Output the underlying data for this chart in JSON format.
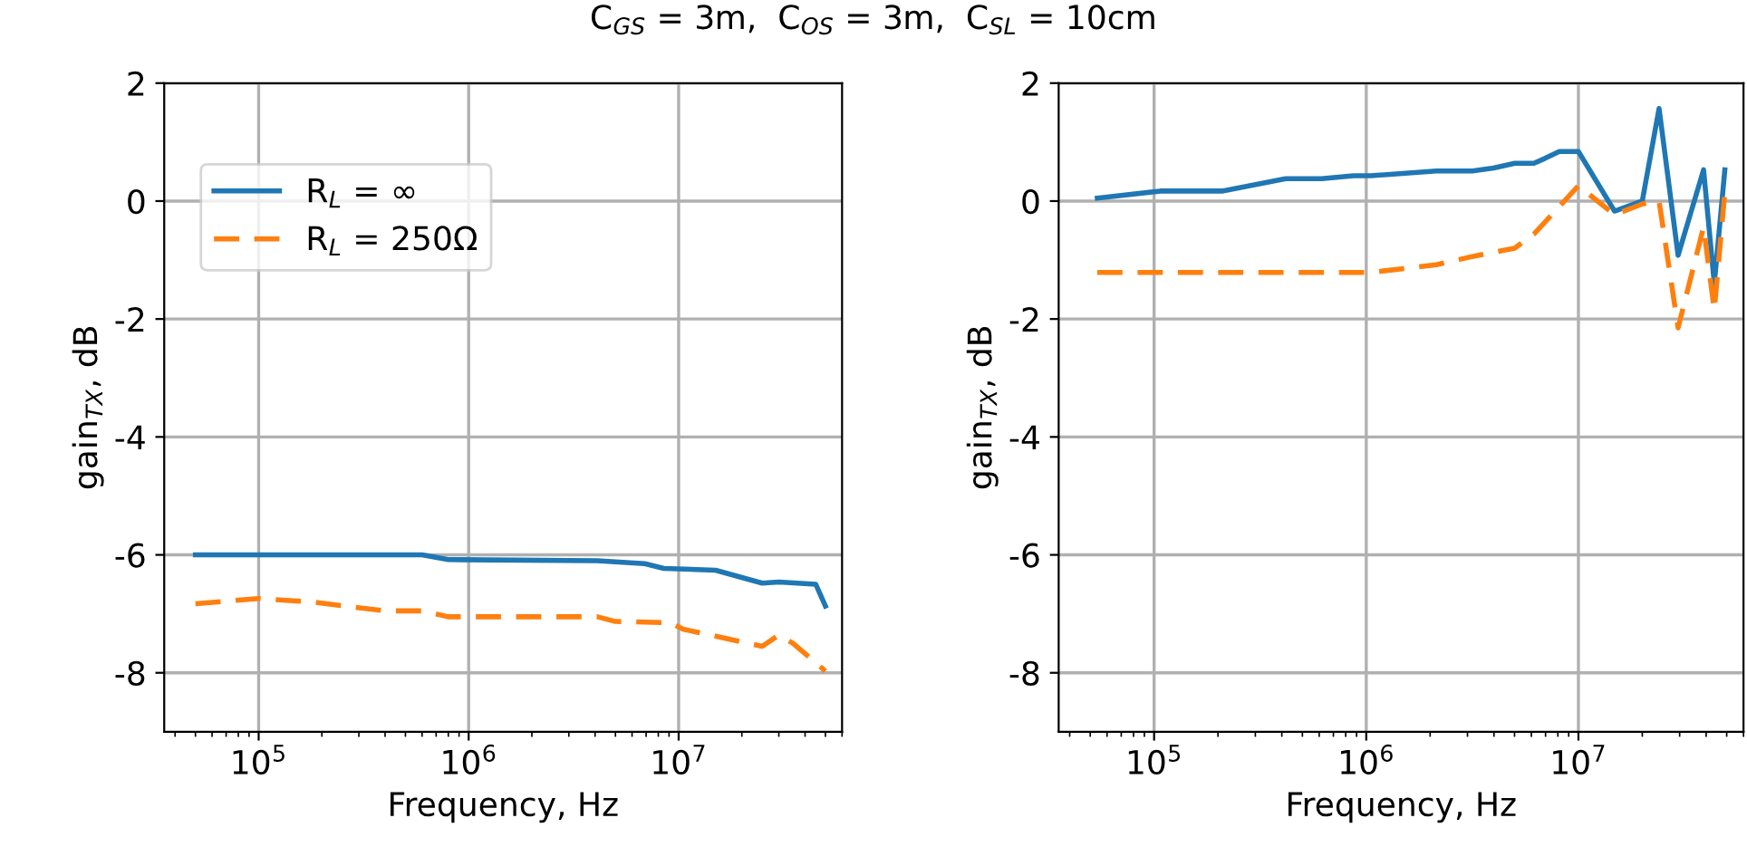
{
  "chart_data": [
    {
      "type": "line",
      "title": "C$_{GS}$ = 3m,  C$_{OS}$ = 3m,  C$_{SL}$ = 10cm",
      "xlabel": "Frequency, Hz",
      "ylabel": "gain$_{TX}$, dB",
      "log": "x",
      "grid": true,
      "legend": "top left",
      "xlim": [
        35500,
        60000000
      ],
      "ylim": [
        -9,
        2
      ],
      "xticks": [
        {
          "value": 100000,
          "label": "10$^{5}$"
        },
        {
          "value": 1000000,
          "label": "10$^{6}$"
        },
        {
          "value": 10000000,
          "label": "10$^{7}$"
        }
      ],
      "yticks": [
        -8,
        -6,
        -4,
        -2,
        0,
        2
      ],
      "series": [
        {
          "name": "R$_{L}$ = ∞",
          "color": "#1f77b4",
          "line_style": "solid",
          "x": [
            50000,
            600000,
            800000,
            4100000,
            6900000,
            8500000,
            15000000,
            25000000,
            30000000,
            45000000,
            50000000
          ],
          "values": [
            -6.0,
            -6.0,
            -6.08,
            -6.1,
            -6.15,
            -6.23,
            -6.26,
            -6.48,
            -6.46,
            -6.5,
            -6.87
          ]
        },
        {
          "name": "R$_{L}$ = 250Ω",
          "color": "#ff7f0e",
          "line_style": "dashed",
          "x": [
            50000,
            100000,
            180000,
            400000,
            600000,
            800000,
            4100000,
            5000000,
            9100000,
            10500000,
            25000000,
            30000000,
            35000000,
            50000000
          ],
          "values": [
            -6.83,
            -6.74,
            -6.8,
            -6.95,
            -6.95,
            -7.05,
            -7.05,
            -7.13,
            -7.15,
            -7.26,
            -7.55,
            -7.36,
            -7.5,
            -7.97
          ]
        }
      ]
    },
    {
      "type": "line",
      "xlabel": "Frequency, Hz",
      "ylabel": "gain$_{TX}$, dB",
      "log": "x",
      "grid": true,
      "xlim": [
        35500,
        60000000
      ],
      "ylim": [
        -9,
        2
      ],
      "xticks": [
        {
          "value": 100000,
          "label": "10$^{5}$"
        },
        {
          "value": 1000000,
          "label": "10$^{6}$"
        },
        {
          "value": 10000000,
          "label": "10$^{7}$"
        }
      ],
      "yticks": [
        -8,
        -6,
        -4,
        -2,
        0,
        2
      ],
      "series": [
        {
          "color": "#1f77b4",
          "line_style": "solid",
          "x": [
            54000,
            107000,
            209000,
            417000,
            617000,
            871000,
            1050000,
            2140000,
            3160000,
            3980000,
            5010000,
            6170000,
            6920000,
            8130000,
            10000000,
            14800000,
            20000000,
            24000000,
            29500000,
            38900000,
            43700000,
            49000000
          ],
          "values": [
            0.05,
            0.17,
            0.17,
            0.38,
            0.38,
            0.43,
            0.43,
            0.51,
            0.51,
            0.56,
            0.64,
            0.64,
            0.72,
            0.84,
            0.84,
            -0.17,
            0.0,
            1.57,
            -0.92,
            0.53,
            -1.4,
            0.53
          ]
        },
        {
          "color": "#ff7f0e",
          "line_style": "dashed",
          "x": [
            54000,
            1050000,
            2140000,
            3160000,
            5010000,
            6170000,
            10000000,
            14800000,
            20000000,
            24000000,
            29500000,
            38900000,
            43700000,
            49000000
          ],
          "values": [
            -1.21,
            -1.21,
            -1.08,
            -0.94,
            -0.8,
            -0.56,
            0.26,
            -0.23,
            -0.05,
            0.0,
            -2.15,
            -0.44,
            -1.85,
            0.15
          ]
        }
      ]
    }
  ]
}
